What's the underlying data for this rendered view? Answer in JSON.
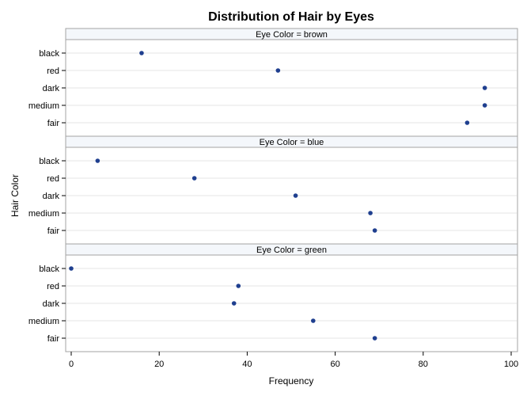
{
  "chart_data": {
    "type": "scatter",
    "title": "Distribution of Hair by Eyes",
    "xlabel": "Frequency",
    "ylabel": "Hair Color",
    "xlim": [
      0,
      100
    ],
    "x_ticks": [
      "0",
      "20",
      "40",
      "60",
      "80",
      "100"
    ],
    "categories": [
      "black",
      "red",
      "dark",
      "medium",
      "fair"
    ],
    "grid": true,
    "marker_color": "#1f3f8f",
    "panels": [
      {
        "label": "Eye Color = brown",
        "values": [
          16,
          47,
          94,
          94,
          90
        ]
      },
      {
        "label": "Eye Color = blue",
        "values": [
          6,
          28,
          51,
          68,
          69
        ]
      },
      {
        "label": "Eye Color = green",
        "values": [
          0,
          38,
          37,
          55,
          69
        ]
      }
    ]
  }
}
